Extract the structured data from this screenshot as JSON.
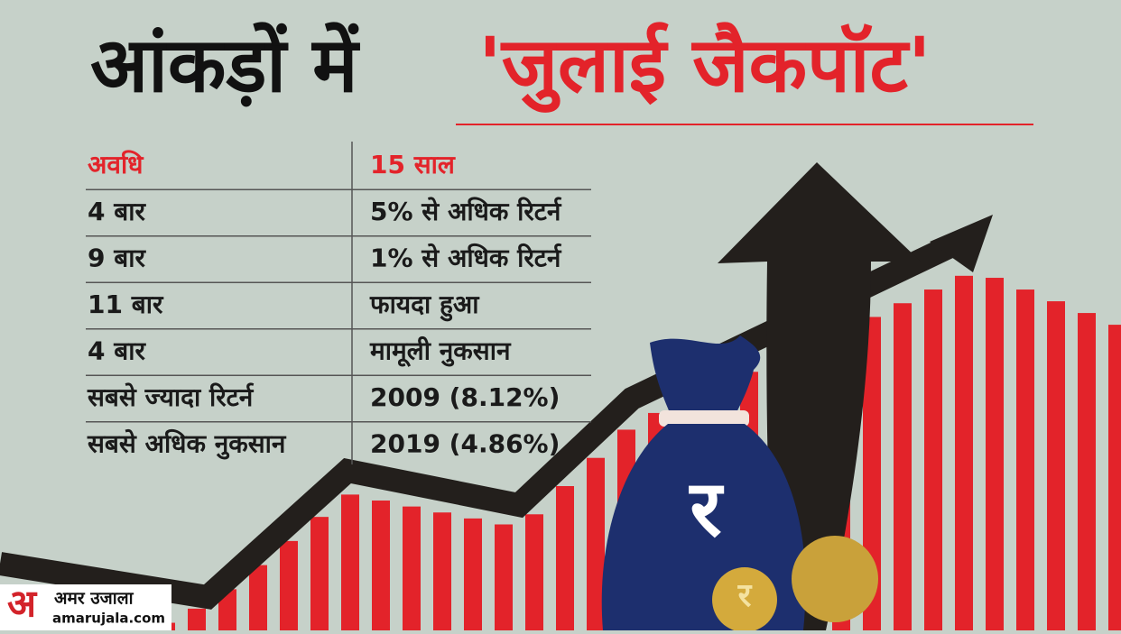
{
  "header": {
    "title_black": "आंकड़ों में",
    "title_red": "'जुलाई जैकपॉट'"
  },
  "table": {
    "columns": [
      "अवधि",
      "15 साल"
    ],
    "rows": [
      [
        "4 बार",
        "5% से अधिक रिटर्न"
      ],
      [
        "9 बार",
        "1% से अधिक रिटर्न"
      ],
      [
        "11 बार",
        "फायदा हुआ"
      ],
      [
        "4 बार",
        "मामूली नुकसान"
      ],
      [
        "सबसे ज्यादा रिटर्न",
        "2009 (8.12%)"
      ],
      [
        "सबसे अधिक नुकसान",
        "2019 (4.86%)"
      ]
    ]
  },
  "illustration": {
    "bag_symbol": "र",
    "coin_symbol": "र"
  },
  "logo": {
    "mark": "अ",
    "name": "अमर उजाला",
    "url": "amarujala.com"
  }
}
